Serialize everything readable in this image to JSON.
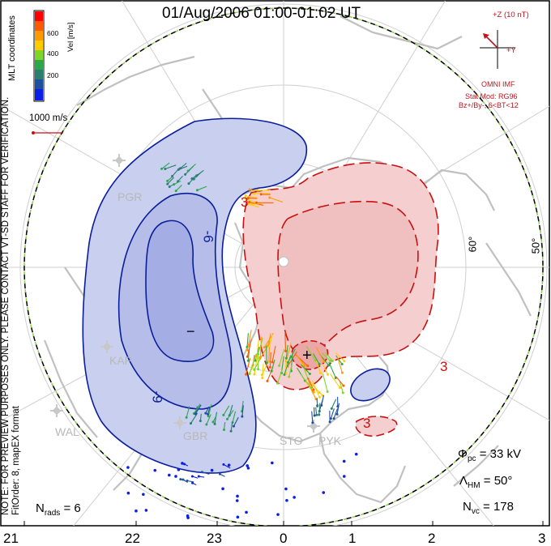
{
  "title": "01/Aug/2006 01:00-01:02 UT",
  "colorbar": {
    "unit_label": "Vel [m/s]",
    "ticks": [
      "600",
      "400",
      "200"
    ],
    "colors": [
      "#ff0000",
      "#ff5a00",
      "#ff9a00",
      "#ffcc00",
      "#7ed628",
      "#2aa84a",
      "#2a7e70",
      "#1e50a0",
      "#0a1ee6"
    ]
  },
  "coordinates_label": "MLT coordinates",
  "scale_vector_label": "1000 m/s",
  "imf": {
    "bz_label": "+Z (10 nT)",
    "by_label": "+Y",
    "source_label": "OMNI IMF",
    "model_label": "Stat Mod: RG96",
    "condition_label": "Bz+/By-, 6<BT<12",
    "color": "#c0141e"
  },
  "side_note": {
    "line1": "NOTE: FOR PREVIEW PURPOSES ONLY. PLEASE CONTACT VT-SD STAFF FOR VERIFICATION.",
    "line2": "FitOrder: 8, mapEX format"
  },
  "stations": [
    "PGR",
    "KAP",
    "WAL",
    "GBR",
    "STO",
    "PYK"
  ],
  "latitude_labels": [
    "60°",
    "50°"
  ],
  "contour_labels": {
    "neg_outer": "-6",
    "neg_inner": "-9",
    "pos_top": "3",
    "pos_right": "3",
    "pos_bottom": "3"
  },
  "markers": {
    "min": "−",
    "max": "+"
  },
  "mlt_labels": [
    "21",
    "22",
    "23",
    "0",
    "1",
    "2",
    "3"
  ],
  "stats": {
    "n_rads_label": "N",
    "n_rads_sub": "rads",
    "n_rads_value": "= 6",
    "phi_label": "Φ",
    "phi_sub": "pc",
    "phi_value": "= 33 kV",
    "lambda_label": "Λ",
    "lambda_sub": "HM",
    "lambda_value": "= 50°",
    "nvc_label": "N",
    "nvc_sub": "vc",
    "nvc_value": "= 178"
  },
  "colors": {
    "negative_contour": "#0a1e9c",
    "negative_fill": "#c9cfee",
    "negative_fill_inner": "#a5aee4",
    "positive_contour": "#c81010",
    "positive_fill": "#f5cfcf",
    "land": "#c0c0c0",
    "boundary_green": "#8ed050"
  }
}
